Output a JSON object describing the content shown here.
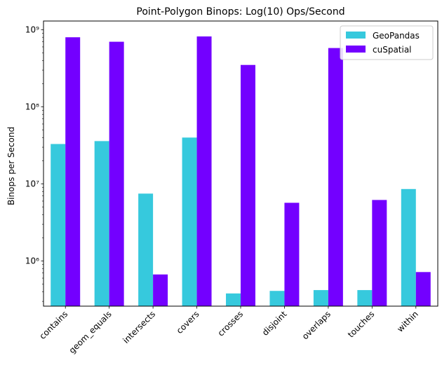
{
  "chart_data": {
    "type": "bar",
    "title": "Point-Polygon Binops: Log(10) Ops/Second",
    "xlabel": "",
    "ylabel": "Binops per Second",
    "yscale": "log",
    "ylim": [
      260000,
      1300000000
    ],
    "yticks": [
      {
        "value": 1000000,
        "label": "10⁶"
      },
      {
        "value": 10000000,
        "label": "10⁷"
      },
      {
        "value": 100000000,
        "label": "10⁸"
      },
      {
        "value": 1000000000,
        "label": "10⁹"
      }
    ],
    "categories": [
      "contains",
      "geom_equals",
      "intersects",
      "covers",
      "crosses",
      "disjoint",
      "overlaps",
      "touches",
      "within"
    ],
    "series": [
      {
        "name": "GeoPandas",
        "color": "#36c9dd",
        "values": [
          33000000,
          36000000,
          7500000,
          40000000,
          380000,
          410000,
          420000,
          420000,
          8600000
        ]
      },
      {
        "name": "cuSpatial",
        "color": "#7300ff",
        "values": [
          800000000,
          700000000,
          670000,
          820000000,
          350000000,
          5700000,
          580000000,
          6200000,
          720000
        ]
      }
    ],
    "legend_position": "top-right",
    "grid": false
  }
}
